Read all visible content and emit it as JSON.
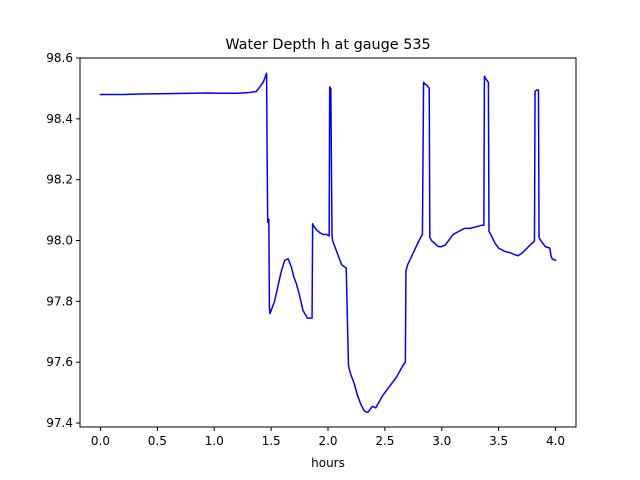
{
  "chart_data": {
    "type": "line",
    "title": "Water Depth h at gauge 535",
    "xlabel": "hours",
    "ylabel": "",
    "xlim": [
      -0.18,
      4.18
    ],
    "ylim": [
      97.387,
      98.6
    ],
    "grid": false,
    "x_ticks": [
      0.0,
      0.5,
      1.0,
      1.5,
      2.0,
      2.5,
      3.0,
      3.5,
      4.0
    ],
    "x_tick_labels": [
      "0.0",
      "0.5",
      "1.0",
      "1.5",
      "2.0",
      "2.5",
      "3.0",
      "3.5",
      "4.0"
    ],
    "y_ticks": [
      97.4,
      97.6,
      97.8,
      98.0,
      98.2,
      98.4,
      98.6
    ],
    "y_tick_labels": [
      "97.4",
      "97.6",
      "97.8",
      "98.0",
      "98.2",
      "98.4",
      "98.6"
    ],
    "series": [
      {
        "name": "",
        "color": "#0000ff",
        "x": [
          0.0,
          0.2,
          0.4,
          0.6,
          0.8,
          0.95,
          1.05,
          1.2,
          1.3,
          1.37,
          1.4,
          1.43,
          1.46,
          1.465,
          1.47,
          1.48,
          1.485,
          1.49,
          1.5,
          1.53,
          1.56,
          1.59,
          1.62,
          1.65,
          1.68,
          1.7,
          1.72,
          1.75,
          1.78,
          1.82,
          1.86,
          1.865,
          1.87,
          1.9,
          1.93,
          1.96,
          1.99,
          2.01,
          2.015,
          2.025,
          2.035,
          2.04,
          2.06,
          2.09,
          2.12,
          2.16,
          2.18,
          2.185,
          2.2,
          2.23,
          2.26,
          2.29,
          2.32,
          2.35,
          2.37,
          2.39,
          2.42,
          2.45,
          2.48,
          2.52,
          2.56,
          2.6,
          2.63,
          2.66,
          2.68,
          2.685,
          2.7,
          2.75,
          2.8,
          2.83,
          2.84,
          2.85,
          2.87,
          2.89,
          2.895,
          2.91,
          2.94,
          2.97,
          3.0,
          3.03,
          3.06,
          3.1,
          3.15,
          3.2,
          3.25,
          3.3,
          3.35,
          3.37,
          3.375,
          3.39,
          3.41,
          3.415,
          3.43,
          3.47,
          3.5,
          3.55,
          3.6,
          3.63,
          3.67,
          3.71,
          3.75,
          3.79,
          3.81,
          3.815,
          3.82,
          3.835,
          3.85,
          3.855,
          3.87,
          3.91,
          3.95,
          3.96,
          3.97,
          4.0
        ],
        "values": [
          98.48,
          98.48,
          98.482,
          98.483,
          98.484,
          98.485,
          98.484,
          98.484,
          98.486,
          98.49,
          98.505,
          98.52,
          98.55,
          98.27,
          98.06,
          98.07,
          97.78,
          97.76,
          97.77,
          97.8,
          97.85,
          97.9,
          97.935,
          97.94,
          97.91,
          97.88,
          97.86,
          97.82,
          97.77,
          97.745,
          97.745,
          98.055,
          98.05,
          98.035,
          98.025,
          98.02,
          98.02,
          98.015,
          98.505,
          98.5,
          98.02,
          98.0,
          97.98,
          97.95,
          97.92,
          97.91,
          97.59,
          97.58,
          97.56,
          97.53,
          97.49,
          97.46,
          97.44,
          97.435,
          97.445,
          97.455,
          97.45,
          97.47,
          97.49,
          97.51,
          97.53,
          97.55,
          97.57,
          97.59,
          97.6,
          97.9,
          97.92,
          97.96,
          98.0,
          98.02,
          98.52,
          98.515,
          98.51,
          98.5,
          98.01,
          98.0,
          97.99,
          97.98,
          97.98,
          97.985,
          98.0,
          98.02,
          98.03,
          98.04,
          98.04,
          98.045,
          98.05,
          98.05,
          98.54,
          98.53,
          98.52,
          98.03,
          98.02,
          97.99,
          97.975,
          97.965,
          97.96,
          97.955,
          97.95,
          97.96,
          97.975,
          97.99,
          97.995,
          98.0,
          98.49,
          98.495,
          98.495,
          98.01,
          98.0,
          97.98,
          97.975,
          97.95,
          97.94,
          97.935
        ]
      }
    ]
  }
}
